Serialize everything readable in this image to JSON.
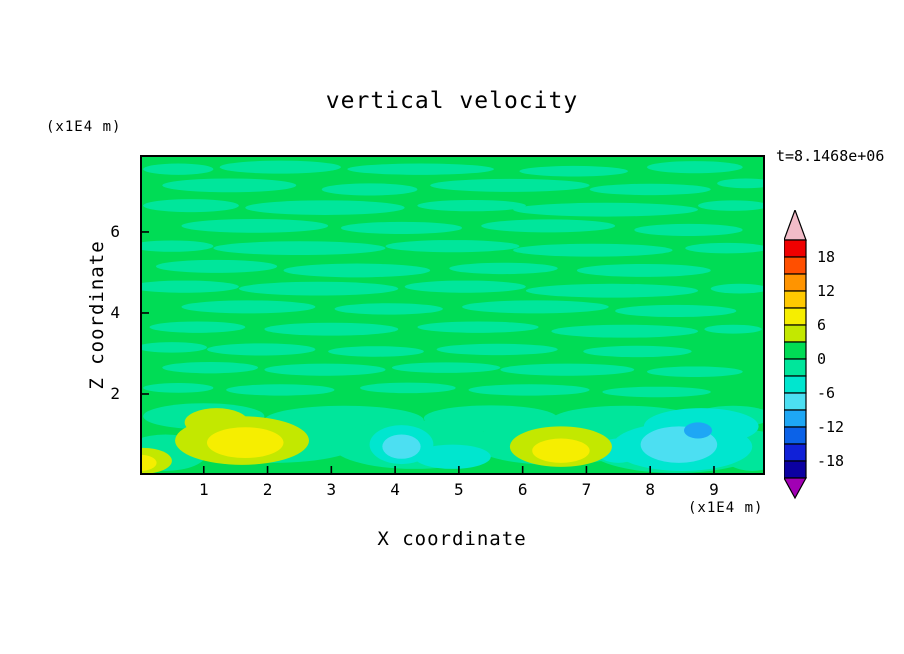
{
  "title": "vertical velocity",
  "timestamp": "t=8.1468e+06",
  "axes": {
    "x": {
      "label": "X coordinate",
      "unit": "(x1E4 m)",
      "ticks": [
        1,
        2,
        3,
        4,
        5,
        6,
        7,
        8,
        9
      ],
      "range": [
        0,
        9.8
      ]
    },
    "z": {
      "label": "Z coordinate",
      "unit": "(x1E4 m)",
      "ticks": [
        2,
        4,
        6
      ],
      "range": [
        0,
        7.9
      ]
    }
  },
  "colorbar": {
    "over_color": "#f2bcc8",
    "under_color": "#a100b4",
    "labels": [
      18,
      12,
      6,
      0,
      -6,
      -12,
      -18
    ]
  },
  "chart_data": {
    "type": "heatmap",
    "title": "vertical velocity",
    "xlabel": "X coordinate",
    "ylabel": "Z coordinate",
    "x_unit": "(x1E4 m)",
    "z_unit": "(x1E4 m)",
    "time_label": "t=8.1468e+06",
    "x_range": [
      0,
      9.8
    ],
    "z_range": [
      0,
      7.9
    ],
    "contour_interval": 3,
    "levels": [
      -21,
      -18,
      -15,
      -12,
      -9,
      -6,
      -3,
      0,
      3,
      6,
      9,
      12,
      15,
      18,
      21
    ],
    "dominant_band": "0 to 3",
    "field_summary": "Filled contour field of vertical velocity; mostly near-zero (green, 0..3) with interleaved slightly negative streaks (-3..0), yellow updraft patches near the bottom boundary around x=0, x=1.7 and x=6.6, and cyan/blue downdraft patches near the bottom around x=4.1 and x=8.5.",
    "bands": [
      {
        "min": 18,
        "max": 21,
        "color": "#ef0000"
      },
      {
        "min": 15,
        "max": 18,
        "color": "#ff4f00"
      },
      {
        "min": 12,
        "max": 15,
        "color": "#ff9400"
      },
      {
        "min": 9,
        "max": 12,
        "color": "#ffc900"
      },
      {
        "min": 6,
        "max": 9,
        "color": "#f6ee00"
      },
      {
        "min": 3,
        "max": 6,
        "color": "#c3e800"
      },
      {
        "min": 0,
        "max": 3,
        "color": "#00dc55"
      },
      {
        "min": -3,
        "max": 0,
        "color": "#00e69b"
      },
      {
        "min": -6,
        "max": -3,
        "color": "#00e6cf"
      },
      {
        "min": -9,
        "max": -6,
        "color": "#4cdff2"
      },
      {
        "min": -12,
        "max": -9,
        "color": "#1ea7f5"
      },
      {
        "min": -15,
        "max": -12,
        "color": "#0b62e8"
      },
      {
        "min": -18,
        "max": -15,
        "color": "#1021d8"
      },
      {
        "min": -21,
        "max": -18,
        "color": "#0b00a1"
      }
    ],
    "blobs": [
      [
        0.6,
        7.55,
        0.55,
        0.14,
        -3
      ],
      [
        2.2,
        7.6,
        0.95,
        0.16,
        -3
      ],
      [
        4.4,
        7.55,
        1.15,
        0.14,
        -3
      ],
      [
        6.8,
        7.5,
        0.85,
        0.13,
        -3
      ],
      [
        8.7,
        7.6,
        0.75,
        0.15,
        -3
      ],
      [
        1.4,
        7.15,
        1.05,
        0.17,
        -3
      ],
      [
        3.6,
        7.05,
        0.75,
        0.15,
        -3
      ],
      [
        5.8,
        7.15,
        1.25,
        0.16,
        -3
      ],
      [
        8.0,
        7.05,
        0.95,
        0.14,
        -3
      ],
      [
        9.5,
        7.2,
        0.45,
        0.12,
        -3
      ],
      [
        0.8,
        6.65,
        0.75,
        0.16,
        -3
      ],
      [
        2.9,
        6.6,
        1.25,
        0.18,
        -3
      ],
      [
        5.2,
        6.65,
        0.85,
        0.14,
        -3
      ],
      [
        7.3,
        6.55,
        1.45,
        0.17,
        -3
      ],
      [
        9.3,
        6.65,
        0.55,
        0.13,
        -3
      ],
      [
        1.8,
        6.15,
        1.15,
        0.17,
        -3
      ],
      [
        4.1,
        6.1,
        0.95,
        0.15,
        -3
      ],
      [
        6.4,
        6.15,
        1.05,
        0.16,
        -3
      ],
      [
        8.6,
        6.05,
        0.85,
        0.15,
        -3
      ],
      [
        0.5,
        5.65,
        0.65,
        0.14,
        -3
      ],
      [
        2.5,
        5.6,
        1.35,
        0.17,
        -3
      ],
      [
        4.9,
        5.65,
        1.05,
        0.15,
        -3
      ],
      [
        7.1,
        5.55,
        1.25,
        0.16,
        -3
      ],
      [
        9.2,
        5.6,
        0.65,
        0.13,
        -3
      ],
      [
        1.2,
        5.15,
        0.95,
        0.16,
        -3
      ],
      [
        3.4,
        5.05,
        1.15,
        0.17,
        -3
      ],
      [
        5.7,
        5.1,
        0.85,
        0.14,
        -3
      ],
      [
        7.9,
        5.05,
        1.05,
        0.16,
        -3
      ],
      [
        0.7,
        4.65,
        0.85,
        0.15,
        -3
      ],
      [
        2.8,
        4.6,
        1.25,
        0.17,
        -3
      ],
      [
        5.1,
        4.65,
        0.95,
        0.15,
        -3
      ],
      [
        7.4,
        4.55,
        1.35,
        0.17,
        -3
      ],
      [
        9.4,
        4.6,
        0.45,
        0.12,
        -3
      ],
      [
        1.7,
        4.15,
        1.05,
        0.16,
        -3
      ],
      [
        3.9,
        4.1,
        0.85,
        0.14,
        -3
      ],
      [
        6.2,
        4.15,
        1.15,
        0.16,
        -3
      ],
      [
        8.4,
        4.05,
        0.95,
        0.15,
        -3
      ],
      [
        0.9,
        3.65,
        0.75,
        0.14,
        -3
      ],
      [
        3.0,
        3.6,
        1.05,
        0.16,
        -3
      ],
      [
        5.3,
        3.65,
        0.95,
        0.14,
        -3
      ],
      [
        7.6,
        3.55,
        1.15,
        0.16,
        -3
      ],
      [
        9.3,
        3.6,
        0.45,
        0.11,
        -3
      ],
      [
        0.5,
        3.15,
        0.55,
        0.13,
        -3
      ],
      [
        1.9,
        3.1,
        0.85,
        0.15,
        -3
      ],
      [
        3.7,
        3.05,
        0.75,
        0.13,
        -3
      ],
      [
        5.6,
        3.1,
        0.95,
        0.14,
        -3
      ],
      [
        7.8,
        3.05,
        0.85,
        0.14,
        -3
      ],
      [
        1.1,
        2.65,
        0.75,
        0.14,
        -3
      ],
      [
        2.9,
        2.6,
        0.95,
        0.15,
        -3
      ],
      [
        4.8,
        2.65,
        0.85,
        0.13,
        -3
      ],
      [
        6.7,
        2.6,
        1.05,
        0.15,
        -3
      ],
      [
        8.7,
        2.55,
        0.75,
        0.13,
        -3
      ],
      [
        0.6,
        2.15,
        0.55,
        0.12,
        -3
      ],
      [
        2.2,
        2.1,
        0.85,
        0.14,
        -3
      ],
      [
        4.2,
        2.15,
        0.75,
        0.13,
        -3
      ],
      [
        6.1,
        2.1,
        0.95,
        0.14,
        -3
      ],
      [
        8.1,
        2.05,
        0.85,
        0.13,
        -3
      ],
      [
        1.0,
        1.45,
        0.95,
        0.32,
        -3
      ],
      [
        3.2,
        1.35,
        1.25,
        0.36,
        -3
      ],
      [
        5.5,
        1.4,
        1.05,
        0.32,
        -3
      ],
      [
        7.6,
        1.35,
        1.15,
        0.36,
        -3
      ],
      [
        9.3,
        1.45,
        0.6,
        0.26,
        -3
      ],
      [
        2.1,
        0.85,
        1.4,
        0.55,
        -3
      ],
      [
        4.3,
        0.75,
        1.3,
        0.6,
        -3
      ],
      [
        6.5,
        0.8,
        1.3,
        0.55,
        -3
      ],
      [
        8.4,
        0.7,
        1.4,
        0.65,
        -3
      ],
      [
        0.4,
        0.55,
        0.65,
        0.45,
        -3
      ],
      [
        9.6,
        0.6,
        0.5,
        0.5,
        -3
      ],
      [
        8.8,
        1.2,
        0.9,
        0.45,
        -6
      ],
      [
        4.9,
        0.45,
        0.6,
        0.3,
        -6
      ],
      [
        7.5,
        0.6,
        0.35,
        0.3,
        -6
      ],
      [
        4.1,
        0.75,
        0.5,
        0.48,
        -6
      ],
      [
        4.1,
        0.7,
        0.3,
        0.3,
        -9
      ],
      [
        8.5,
        0.7,
        1.1,
        0.6,
        -6
      ],
      [
        8.45,
        0.75,
        0.6,
        0.45,
        -9
      ],
      [
        8.75,
        1.1,
        0.22,
        0.2,
        -12
      ],
      [
        1.6,
        0.85,
        1.05,
        0.6,
        3
      ],
      [
        1.2,
        1.3,
        0.5,
        0.35,
        3
      ],
      [
        1.65,
        0.8,
        0.6,
        0.38,
        6
      ],
      [
        6.6,
        0.7,
        0.8,
        0.5,
        3
      ],
      [
        6.6,
        0.6,
        0.45,
        0.3,
        6
      ],
      [
        0.05,
        0.35,
        0.45,
        0.32,
        3
      ],
      [
        0.0,
        0.3,
        0.26,
        0.2,
        6
      ]
    ]
  }
}
